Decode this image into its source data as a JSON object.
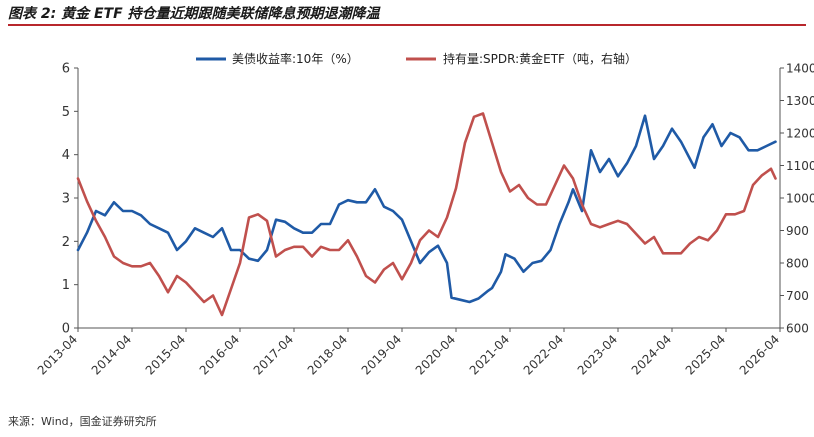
{
  "figure_title": "图表 2:  黄金 ETF 持仓量近期跟随美联储降息预期退潮降温",
  "source": "来源：Wind，国金证券研究所",
  "chart_data": {
    "type": "line",
    "x_ticks": [
      "2013-04",
      "2014-04",
      "2015-04",
      "2016-04",
      "2017-04",
      "2018-04",
      "2019-04",
      "2020-04",
      "2021-04",
      "2022-04",
      "2023-04",
      "2024-04",
      "2025-04",
      "2026-04"
    ],
    "x_range": [
      "2013-04",
      "2026-04"
    ],
    "y_left": {
      "range": [
        0,
        6
      ],
      "ticks": [
        "0",
        "1",
        "2",
        "3",
        "4",
        "5",
        "6"
      ]
    },
    "y_right": {
      "range": [
        600,
        1400
      ],
      "ticks": [
        "600",
        "700",
        "800",
        "900",
        "1000",
        "1100",
        "1200",
        "1300",
        "1400"
      ]
    },
    "legend_position": "top",
    "grid": false,
    "series": [
      {
        "name": "美债收益率:10年（%）",
        "axis": "left",
        "color": "#1f5aa6",
        "points": [
          [
            "2013-04",
            1.8
          ],
          [
            "2013-06",
            2.2
          ],
          [
            "2013-08",
            2.7
          ],
          [
            "2013-10",
            2.6
          ],
          [
            "2013-12",
            2.9
          ],
          [
            "2014-02",
            2.7
          ],
          [
            "2014-04",
            2.7
          ],
          [
            "2014-06",
            2.6
          ],
          [
            "2014-08",
            2.4
          ],
          [
            "2014-10",
            2.3
          ],
          [
            "2014-12",
            2.2
          ],
          [
            "2015-02",
            1.8
          ],
          [
            "2015-04",
            2.0
          ],
          [
            "2015-06",
            2.3
          ],
          [
            "2015-08",
            2.2
          ],
          [
            "2015-10",
            2.1
          ],
          [
            "2015-12",
            2.3
          ],
          [
            "2016-02",
            1.8
          ],
          [
            "2016-04",
            1.8
          ],
          [
            "2016-06",
            1.6
          ],
          [
            "2016-08",
            1.55
          ],
          [
            "2016-10",
            1.8
          ],
          [
            "2016-12",
            2.5
          ],
          [
            "2017-02",
            2.45
          ],
          [
            "2017-04",
            2.3
          ],
          [
            "2017-06",
            2.2
          ],
          [
            "2017-08",
            2.2
          ],
          [
            "2017-10",
            2.4
          ],
          [
            "2017-12",
            2.4
          ],
          [
            "2018-02",
            2.85
          ],
          [
            "2018-04",
            2.95
          ],
          [
            "2018-06",
            2.9
          ],
          [
            "2018-08",
            2.9
          ],
          [
            "2018-10",
            3.2
          ],
          [
            "2018-12",
            2.8
          ],
          [
            "2019-02",
            2.7
          ],
          [
            "2019-04",
            2.5
          ],
          [
            "2019-06",
            2.0
          ],
          [
            "2019-08",
            1.5
          ],
          [
            "2019-10",
            1.75
          ],
          [
            "2019-12",
            1.9
          ],
          [
            "2020-02",
            1.5
          ],
          [
            "2020-03",
            0.7
          ],
          [
            "2020-05",
            0.65
          ],
          [
            "2020-07",
            0.6
          ],
          [
            "2020-09",
            0.68
          ],
          [
            "2020-11",
            0.85
          ],
          [
            "2020-12",
            0.92
          ],
          [
            "2021-02",
            1.3
          ],
          [
            "2021-03",
            1.7
          ],
          [
            "2021-05",
            1.6
          ],
          [
            "2021-07",
            1.3
          ],
          [
            "2021-09",
            1.5
          ],
          [
            "2021-11",
            1.55
          ],
          [
            "2022-01",
            1.8
          ],
          [
            "2022-03",
            2.4
          ],
          [
            "2022-05",
            2.9
          ],
          [
            "2022-06",
            3.2
          ],
          [
            "2022-08",
            2.7
          ],
          [
            "2022-10",
            4.1
          ],
          [
            "2022-12",
            3.6
          ],
          [
            "2023-02",
            3.9
          ],
          [
            "2023-04",
            3.5
          ],
          [
            "2023-06",
            3.8
          ],
          [
            "2023-08",
            4.2
          ],
          [
            "2023-10",
            4.9
          ],
          [
            "2023-12",
            3.9
          ],
          [
            "2024-02",
            4.2
          ],
          [
            "2024-04",
            4.6
          ],
          [
            "2024-06",
            4.3
          ],
          [
            "2024-08",
            3.9
          ],
          [
            "2024-09",
            3.7
          ],
          [
            "2024-11",
            4.4
          ],
          [
            "2025-01",
            4.7
          ],
          [
            "2025-03",
            4.2
          ],
          [
            "2025-05",
            4.5
          ],
          [
            "2025-07",
            4.4
          ],
          [
            "2025-09",
            4.1
          ],
          [
            "2025-11",
            4.1
          ],
          [
            "2026-01",
            4.2
          ],
          [
            "2026-03",
            4.3
          ]
        ]
      },
      {
        "name": "持有量:SPDR:黄金ETF（吨，右轴）",
        "axis": "right",
        "color": "#c0504d",
        "points": [
          [
            "2013-04",
            1060
          ],
          [
            "2013-06",
            990
          ],
          [
            "2013-08",
            930
          ],
          [
            "2013-10",
            880
          ],
          [
            "2013-12",
            820
          ],
          [
            "2014-02",
            800
          ],
          [
            "2014-04",
            790
          ],
          [
            "2014-06",
            790
          ],
          [
            "2014-08",
            800
          ],
          [
            "2014-10",
            760
          ],
          [
            "2014-12",
            710
          ],
          [
            "2015-02",
            760
          ],
          [
            "2015-04",
            740
          ],
          [
            "2015-06",
            710
          ],
          [
            "2015-08",
            680
          ],
          [
            "2015-10",
            700
          ],
          [
            "2015-12",
            640
          ],
          [
            "2016-02",
            720
          ],
          [
            "2016-04",
            800
          ],
          [
            "2016-06",
            940
          ],
          [
            "2016-08",
            950
          ],
          [
            "2016-10",
            930
          ],
          [
            "2016-12",
            820
          ],
          [
            "2017-02",
            840
          ],
          [
            "2017-04",
            850
          ],
          [
            "2017-06",
            850
          ],
          [
            "2017-08",
            820
          ],
          [
            "2017-10",
            850
          ],
          [
            "2017-12",
            840
          ],
          [
            "2018-02",
            840
          ],
          [
            "2018-04",
            870
          ],
          [
            "2018-06",
            820
          ],
          [
            "2018-08",
            760
          ],
          [
            "2018-10",
            740
          ],
          [
            "2018-12",
            780
          ],
          [
            "2019-02",
            800
          ],
          [
            "2019-04",
            750
          ],
          [
            "2019-06",
            800
          ],
          [
            "2019-08",
            870
          ],
          [
            "2019-10",
            900
          ],
          [
            "2019-12",
            880
          ],
          [
            "2020-02",
            940
          ],
          [
            "2020-04",
            1030
          ],
          [
            "2020-06",
            1170
          ],
          [
            "2020-08",
            1250
          ],
          [
            "2020-10",
            1260
          ],
          [
            "2020-12",
            1170
          ],
          [
            "2021-02",
            1080
          ],
          [
            "2021-04",
            1020
          ],
          [
            "2021-06",
            1040
          ],
          [
            "2021-08",
            1000
          ],
          [
            "2021-10",
            980
          ],
          [
            "2021-12",
            980
          ],
          [
            "2022-02",
            1040
          ],
          [
            "2022-04",
            1100
          ],
          [
            "2022-06",
            1060
          ],
          [
            "2022-08",
            980
          ],
          [
            "2022-10",
            920
          ],
          [
            "2022-12",
            910
          ],
          [
            "2023-02",
            920
          ],
          [
            "2023-04",
            930
          ],
          [
            "2023-06",
            920
          ],
          [
            "2023-08",
            890
          ],
          [
            "2023-10",
            860
          ],
          [
            "2023-12",
            880
          ],
          [
            "2024-02",
            830
          ],
          [
            "2024-04",
            830
          ],
          [
            "2024-06",
            830
          ],
          [
            "2024-08",
            860
          ],
          [
            "2024-10",
            880
          ],
          [
            "2024-12",
            870
          ],
          [
            "2025-02",
            900
          ],
          [
            "2025-04",
            950
          ],
          [
            "2025-06",
            950
          ],
          [
            "2025-08",
            960
          ],
          [
            "2025-10",
            1040
          ],
          [
            "2025-12",
            1070
          ],
          [
            "2026-02",
            1090
          ],
          [
            "2026-03",
            1060
          ]
        ]
      }
    ]
  }
}
